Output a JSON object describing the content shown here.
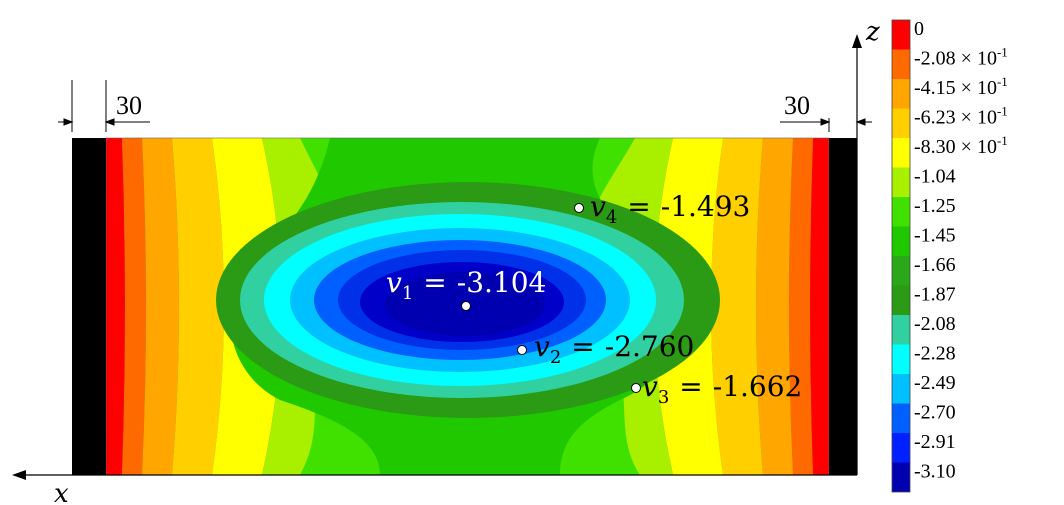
{
  "dimensions": {
    "left_width": "30",
    "right_width": "30"
  },
  "axes": {
    "x_label": "x",
    "z_label": "z"
  },
  "probe_points": [
    {
      "var": "v",
      "sub": "1",
      "value": "-3.104"
    },
    {
      "var": "v",
      "sub": "2",
      "value": "-2.760"
    },
    {
      "var": "v",
      "sub": "3",
      "value": "-1.662"
    },
    {
      "var": "v",
      "sub": "4",
      "value": "-1.493"
    }
  ],
  "equals": "=",
  "legend": {
    "levels": [
      {
        "mant": "0",
        "exp": ""
      },
      {
        "mant": "-2.08 × 10",
        "exp": "-1"
      },
      {
        "mant": "-4.15 × 10",
        "exp": "-1"
      },
      {
        "mant": "-6.23 × 10",
        "exp": "-1"
      },
      {
        "mant": "-8.30 × 10",
        "exp": "-1"
      },
      {
        "mant": "-1.04",
        "exp": ""
      },
      {
        "mant": "-1.25",
        "exp": ""
      },
      {
        "mant": "-1.45",
        "exp": ""
      },
      {
        "mant": "-1.66",
        "exp": ""
      },
      {
        "mant": "-1.87",
        "exp": ""
      },
      {
        "mant": "-2.08",
        "exp": ""
      },
      {
        "mant": "-2.28",
        "exp": ""
      },
      {
        "mant": "-2.49",
        "exp": ""
      },
      {
        "mant": "-2.70",
        "exp": ""
      },
      {
        "mant": "-2.91",
        "exp": ""
      },
      {
        "mant": "-3.10",
        "exp": ""
      }
    ],
    "colors": [
      "#ff0000",
      "#ff6a00",
      "#ffa600",
      "#ffcf00",
      "#ffff00",
      "#a8f000",
      "#40e000",
      "#20c800",
      "#2aa81a",
      "#2b9a14",
      "#30d0a0",
      "#00ffff",
      "#00c0ff",
      "#0060ff",
      "#0020ff",
      "#0000b0"
    ]
  },
  "contour_colors": {
    "band_0": "#ff0000",
    "band_1": "#ff6a00",
    "band_2": "#ffa600",
    "band_3": "#ffcf00",
    "band_4": "#ffff00",
    "band_5": "#a8f000",
    "band_6": "#40e000",
    "band_7": "#20c800",
    "band_8": "#2b9a14",
    "band_9": "#30d0a0",
    "band_10": "#00ffff",
    "band_11": "#00c0ff",
    "band_12": "#0060ff",
    "band_13": "#0030e8",
    "band_14": "#0000c8",
    "support": "#000000"
  }
}
